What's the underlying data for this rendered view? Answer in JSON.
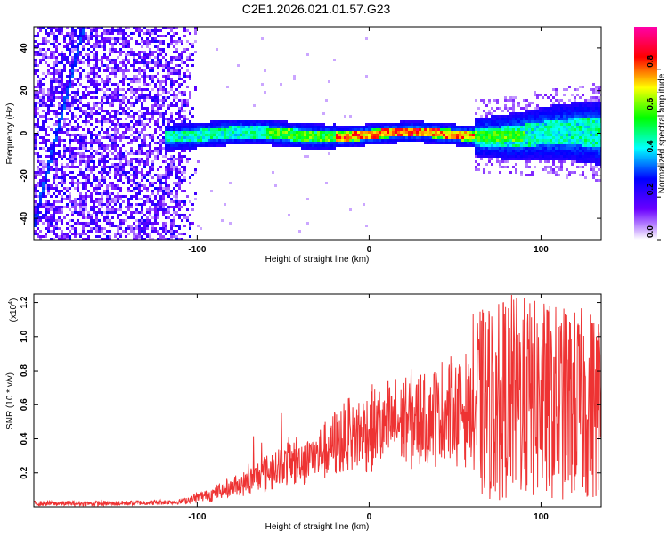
{
  "title": "C2E1.2026.021.01.57.G23",
  "chart_data": [
    {
      "type": "heatmap",
      "xlabel": "Height of straight line (km)",
      "ylabel": "Frequency (Hz)",
      "xlim": [
        -195,
        135
      ],
      "ylim": [
        -50,
        50
      ],
      "xticks": [
        -100,
        0,
        100
      ],
      "yticks": [
        40,
        20,
        0,
        -20,
        -40
      ],
      "colorbar": {
        "label": "Normalized spectral amplitude",
        "range": [
          0.0,
          1.0
        ],
        "ticks": [
          "0.0",
          "0.2",
          "0.4",
          "0.6",
          "0.8"
        ],
        "colors": [
          "#ffffff",
          "#6a00ff",
          "#0000ff",
          "#00ffff",
          "#00ff00",
          "#ffff00",
          "#ff0000",
          "#ff00aa"
        ]
      },
      "band_center_hz": 0,
      "band_start_km": -120,
      "noise_region_km": [
        -195,
        -100
      ],
      "peak_amplitude_km": [
        -20,
        60
      ]
    },
    {
      "type": "line",
      "xlabel": "Height of straight line (km)",
      "ylabel": "SNR (10 * v/v)",
      "multiplier_base": "x10",
      "multiplier_exp": "4",
      "xlim": [
        -195,
        135
      ],
      "ylim": [
        0,
        1.25
      ],
      "xticks": [
        -100,
        0,
        100
      ],
      "yticks": [
        0.2,
        0.4,
        0.6,
        0.8,
        1.0,
        1.2
      ],
      "series": [
        {
          "name": "SNR",
          "color": "#ee3333",
          "envelope_x": [
            -195,
            -150,
            -110,
            -90,
            -70,
            -50,
            -30,
            -15,
            0,
            20,
            40,
            60,
            80,
            100,
            120,
            135
          ],
          "envelope_y": [
            0.02,
            0.02,
            0.03,
            0.08,
            0.15,
            0.25,
            0.3,
            0.4,
            0.45,
            0.5,
            0.55,
            0.58,
            0.65,
            0.62,
            0.6,
            0.6
          ]
        }
      ]
    }
  ]
}
